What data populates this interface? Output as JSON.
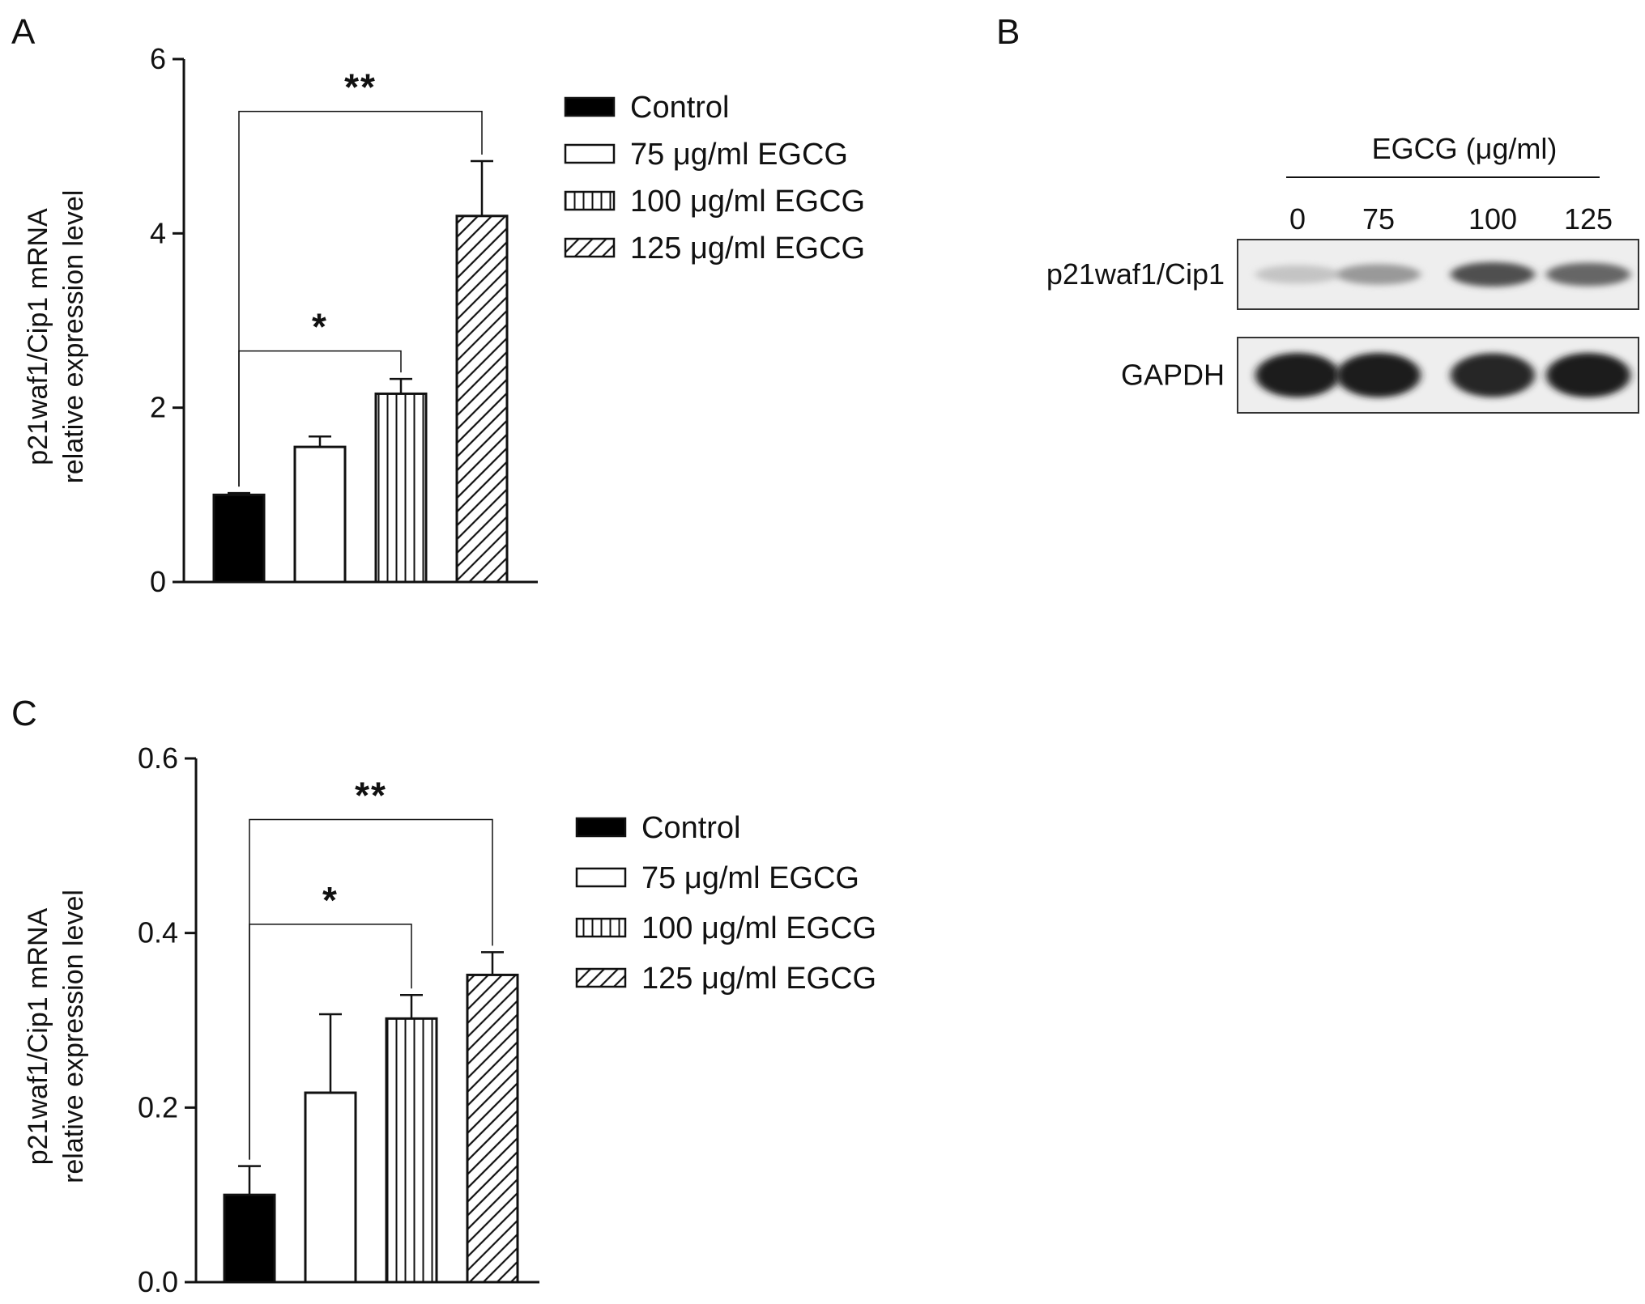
{
  "panels": {
    "a": {
      "letter": "A"
    },
    "b": {
      "letter": "B"
    },
    "c": {
      "letter": "C"
    }
  },
  "colors": {
    "ink": "#111111",
    "bar_fill_control": "#000000",
    "bar_fill_open": "#ffffff"
  },
  "chart_data": [
    {
      "panel": "A",
      "type": "bar",
      "categories": [
        "Control",
        "75 μg/ml EGCG",
        "100 μg/ml EGCG",
        "125 μg/ml EGCG"
      ],
      "values": [
        1.0,
        1.55,
        2.16,
        4.2
      ],
      "errors": [
        0.02,
        0.12,
        0.17,
        0.63
      ],
      "patterns": [
        "solid",
        "open",
        "vertical",
        "diagonal"
      ],
      "ylim": [
        0,
        6
      ],
      "yticks": [
        0,
        2,
        4,
        6
      ],
      "ylabel": [
        "p21waf1/Cip1 mRNA",
        "relative expression level"
      ],
      "xlabel": "",
      "legend": [
        "Control",
        "75 μg/ml EGCG",
        "100 μg/ml EGCG",
        "125 μg/ml EGCG"
      ],
      "legend_position": "right",
      "significance": [
        {
          "from": 0,
          "to": 2,
          "label": "*",
          "level": 2.65
        },
        {
          "from": 0,
          "to": 3,
          "label": "**",
          "level": 5.4
        }
      ]
    },
    {
      "panel": "C",
      "type": "bar",
      "categories": [
        "Control",
        "75 μg/ml EGCG",
        "100 μg/ml EGCG",
        "125 μg/ml EGCG"
      ],
      "values": [
        0.1,
        0.217,
        0.302,
        0.352
      ],
      "errors": [
        0.033,
        0.09,
        0.027,
        0.026
      ],
      "patterns": [
        "solid",
        "open",
        "vertical",
        "diagonal"
      ],
      "ylim": [
        0,
        0.6
      ],
      "yticks": [
        "0.0",
        "0.2",
        "0.4",
        "0.6"
      ],
      "ylabel": [
        "p21waf1/Cip1 mRNA",
        "relative expression level"
      ],
      "xlabel": "",
      "legend": [
        "Control",
        "75 μg/ml EGCG",
        "100 μg/ml EGCG",
        "125 μg/ml EGCG"
      ],
      "legend_position": "right",
      "significance": [
        {
          "from": 0,
          "to": 2,
          "label": "*",
          "level": 0.41
        },
        {
          "from": 0,
          "to": 3,
          "label": "**",
          "level": 0.53
        }
      ]
    }
  ],
  "western_blot": {
    "treatment_label": "EGCG (μg/ml)",
    "doses": [
      "0",
      "75",
      "100",
      "125"
    ],
    "rows": [
      {
        "label": "p21waf1/Cip1",
        "intensities": [
          0.18,
          0.38,
          0.72,
          0.62
        ]
      },
      {
        "label": "GAPDH",
        "intensities": [
          0.95,
          0.95,
          0.92,
          0.95
        ]
      }
    ]
  }
}
